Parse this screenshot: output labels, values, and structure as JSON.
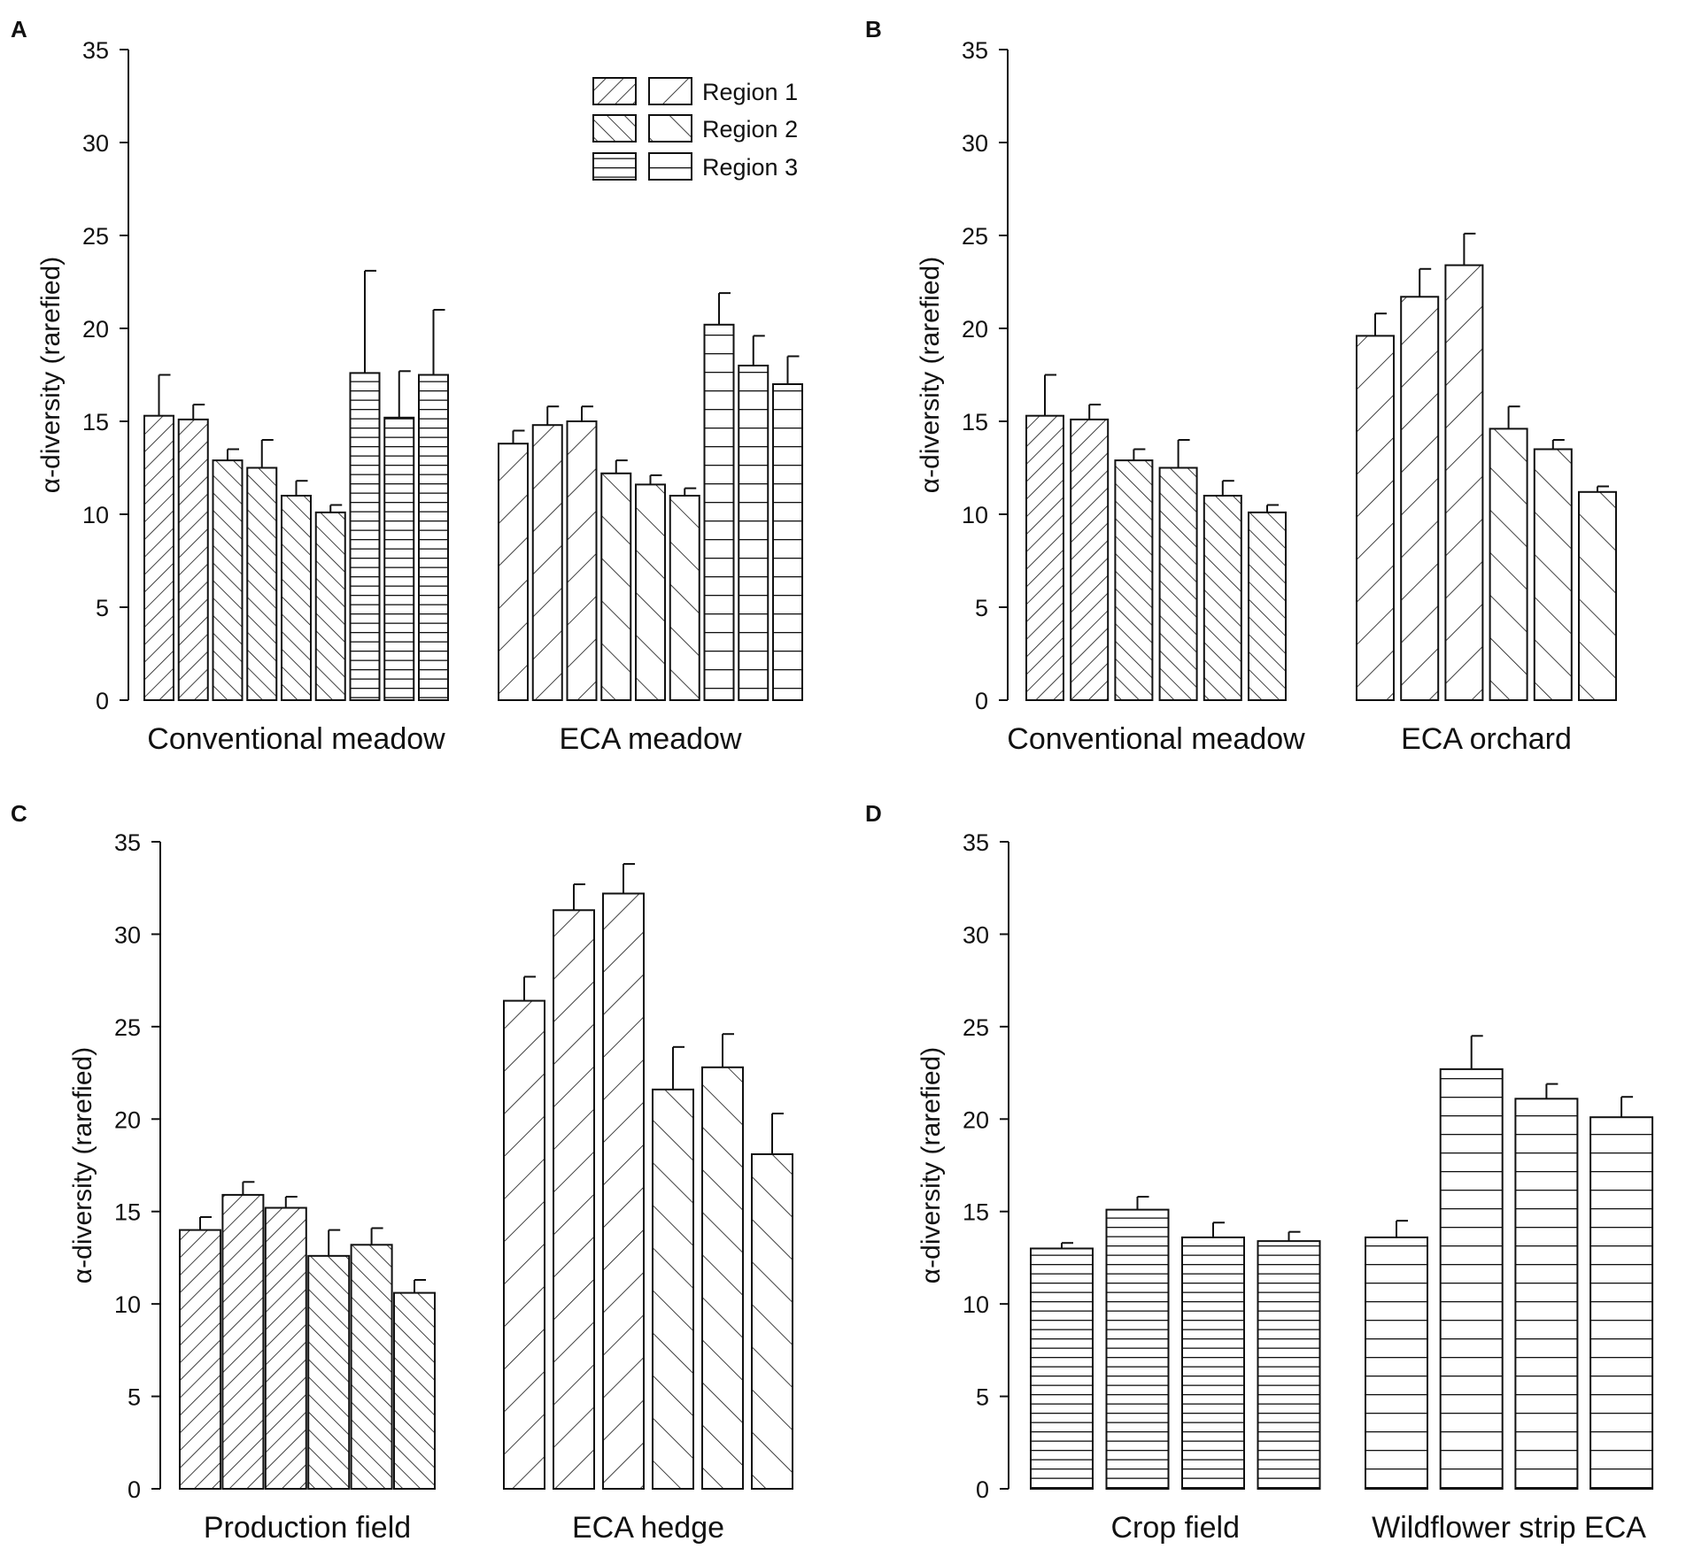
{
  "figure": {
    "legend": {
      "entries": [
        {
          "label": "Region 1",
          "patterns": [
            "r1d",
            "r1s"
          ]
        },
        {
          "label": "Region 2",
          "patterns": [
            "r2d",
            "r2s"
          ]
        },
        {
          "label": "Region 3",
          "patterns": [
            "r3d",
            "r3s"
          ]
        }
      ]
    }
  },
  "chart_data": [
    {
      "panel": "A",
      "type": "bar",
      "ylabel": "α-diversity (rarefied)",
      "ylim": [
        0,
        35
      ],
      "yticks": [
        "0",
        "5",
        "10",
        "15",
        "20",
        "25",
        "30",
        "35"
      ],
      "groups": [
        {
          "label": "Conventional meadow",
          "bars": [
            {
              "region": 1,
              "value": 15.3,
              "error": 2.2,
              "pattern": "r1d"
            },
            {
              "region": 1,
              "value": 15.1,
              "error": 0.8,
              "pattern": "r1d"
            },
            {
              "region": 2,
              "value": 12.9,
              "error": 0.6,
              "pattern": "r2d"
            },
            {
              "region": 2,
              "value": 12.5,
              "error": 1.5,
              "pattern": "r2d"
            },
            {
              "region": 2,
              "value": 11.0,
              "error": 0.8,
              "pattern": "r2d"
            },
            {
              "region": 2,
              "value": 10.1,
              "error": 0.4,
              "pattern": "r2d"
            },
            {
              "region": 3,
              "value": 17.6,
              "error": 5.5,
              "pattern": "r3d"
            },
            {
              "region": 3,
              "value": 15.2,
              "error": 2.5,
              "pattern": "r3d"
            },
            {
              "region": 3,
              "value": 17.5,
              "error": 3.5,
              "pattern": "r3d"
            }
          ]
        },
        {
          "label": "ECA meadow",
          "bars": [
            {
              "region": 1,
              "value": 13.8,
              "error": 0.7,
              "pattern": "r1s"
            },
            {
              "region": 1,
              "value": 14.8,
              "error": 1.0,
              "pattern": "r1s"
            },
            {
              "region": 1,
              "value": 15.0,
              "error": 0.8,
              "pattern": "r1s"
            },
            {
              "region": 2,
              "value": 12.2,
              "error": 0.7,
              "pattern": "r2s"
            },
            {
              "region": 2,
              "value": 11.6,
              "error": 0.5,
              "pattern": "r2s"
            },
            {
              "region": 2,
              "value": 11.0,
              "error": 0.4,
              "pattern": "r2s"
            },
            {
              "region": 3,
              "value": 20.2,
              "error": 1.7,
              "pattern": "r3s"
            },
            {
              "region": 3,
              "value": 18.0,
              "error": 1.6,
              "pattern": "r3s"
            },
            {
              "region": 3,
              "value": 17.0,
              "error": 1.5,
              "pattern": "r3s"
            }
          ]
        }
      ]
    },
    {
      "panel": "B",
      "type": "bar",
      "ylabel": "α-diversity (rarefied)",
      "ylim": [
        0,
        35
      ],
      "yticks": [
        "0",
        "5",
        "10",
        "15",
        "20",
        "25",
        "30",
        "35"
      ],
      "groups": [
        {
          "label": "Conventional meadow",
          "bars": [
            {
              "region": 1,
              "value": 15.3,
              "error": 2.2,
              "pattern": "r1d"
            },
            {
              "region": 1,
              "value": 15.1,
              "error": 0.8,
              "pattern": "r1d"
            },
            {
              "region": 2,
              "value": 12.9,
              "error": 0.6,
              "pattern": "r2d"
            },
            {
              "region": 2,
              "value": 12.5,
              "error": 1.5,
              "pattern": "r2d"
            },
            {
              "region": 2,
              "value": 11.0,
              "error": 0.8,
              "pattern": "r2d"
            },
            {
              "region": 2,
              "value": 10.1,
              "error": 0.4,
              "pattern": "r2d"
            }
          ]
        },
        {
          "label": "ECA orchard",
          "bars": [
            {
              "region": 1,
              "value": 19.6,
              "error": 1.2,
              "pattern": "r1s"
            },
            {
              "region": 1,
              "value": 21.7,
              "error": 1.5,
              "pattern": "r1s"
            },
            {
              "region": 1,
              "value": 23.4,
              "error": 1.7,
              "pattern": "r1s"
            },
            {
              "region": 2,
              "value": 14.6,
              "error": 1.2,
              "pattern": "r2s"
            },
            {
              "region": 2,
              "value": 13.5,
              "error": 0.5,
              "pattern": "r2s"
            },
            {
              "region": 2,
              "value": 11.2,
              "error": 0.3,
              "pattern": "r2s"
            }
          ]
        }
      ]
    },
    {
      "panel": "C",
      "type": "bar",
      "ylabel": "α-diversity (rarefied)",
      "ylim": [
        0,
        35
      ],
      "yticks": [
        "0",
        "5",
        "10",
        "15",
        "20",
        "25",
        "30",
        "35"
      ],
      "groups": [
        {
          "label": "Production field",
          "bars": [
            {
              "region": 1,
              "value": 14.0,
              "error": 0.7,
              "pattern": "r1d"
            },
            {
              "region": 1,
              "value": 15.9,
              "error": 0.7,
              "pattern": "r1d"
            },
            {
              "region": 1,
              "value": 15.2,
              "error": 0.6,
              "pattern": "r1d"
            },
            {
              "region": 2,
              "value": 12.6,
              "error": 1.4,
              "pattern": "r2d"
            },
            {
              "region": 2,
              "value": 13.2,
              "error": 0.9,
              "pattern": "r2d"
            },
            {
              "region": 2,
              "value": 10.6,
              "error": 0.7,
              "pattern": "r2d"
            }
          ]
        },
        {
          "label": "ECA hedge",
          "bars": [
            {
              "region": 1,
              "value": 26.4,
              "error": 1.3,
              "pattern": "r1s"
            },
            {
              "region": 1,
              "value": 31.3,
              "error": 1.4,
              "pattern": "r1s"
            },
            {
              "region": 1,
              "value": 32.2,
              "error": 1.6,
              "pattern": "r1s"
            },
            {
              "region": 2,
              "value": 21.6,
              "error": 2.3,
              "pattern": "r2s"
            },
            {
              "region": 2,
              "value": 22.8,
              "error": 1.8,
              "pattern": "r2s"
            },
            {
              "region": 2,
              "value": 18.1,
              "error": 2.2,
              "pattern": "r2s"
            }
          ]
        }
      ]
    },
    {
      "panel": "D",
      "type": "bar",
      "ylabel": "α-diversity (rarefied)",
      "ylim": [
        0,
        35
      ],
      "yticks": [
        "0",
        "5",
        "10",
        "15",
        "20",
        "25",
        "30",
        "35"
      ],
      "groups": [
        {
          "label": "Crop field",
          "bars": [
            {
              "region": 3,
              "value": 13.0,
              "error": 0.3,
              "pattern": "r3d"
            },
            {
              "region": 3,
              "value": 15.1,
              "error": 0.7,
              "pattern": "r3d"
            },
            {
              "region": 3,
              "value": 13.6,
              "error": 0.8,
              "pattern": "r3d"
            },
            {
              "region": 3,
              "value": 13.4,
              "error": 0.5,
              "pattern": "r3d"
            }
          ]
        },
        {
          "label": "Wildflower strip ECA",
          "bars": [
            {
              "region": 3,
              "value": 13.6,
              "error": 0.9,
              "pattern": "r3s"
            },
            {
              "region": 3,
              "value": 22.7,
              "error": 1.8,
              "pattern": "r3s"
            },
            {
              "region": 3,
              "value": 21.1,
              "error": 0.8,
              "pattern": "r3s"
            },
            {
              "region": 3,
              "value": 20.1,
              "error": 1.1,
              "pattern": "r3s"
            }
          ]
        }
      ]
    }
  ]
}
